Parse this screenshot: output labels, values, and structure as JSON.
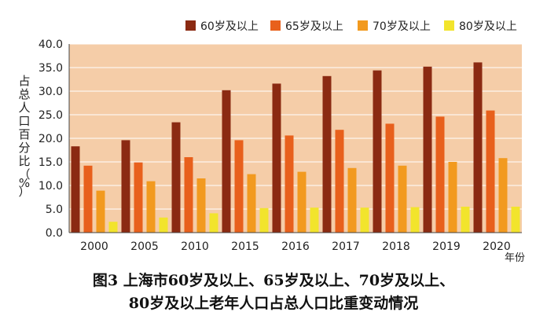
{
  "chart_data": {
    "type": "bar",
    "categories": [
      "2000",
      "2005",
      "2010",
      "2015",
      "2016",
      "2017",
      "2018",
      "2019",
      "2020"
    ],
    "series": [
      {
        "name": "60岁及以上",
        "color": "#8B2A12",
        "values": [
          18.3,
          19.6,
          23.4,
          30.2,
          31.6,
          33.2,
          34.4,
          35.2,
          36.1
        ]
      },
      {
        "name": "65岁及以上",
        "color": "#E8601C",
        "values": [
          14.2,
          14.9,
          16.0,
          19.6,
          20.6,
          21.8,
          23.1,
          24.6,
          25.9
        ]
      },
      {
        "name": "70岁及以上",
        "color": "#F29A1F",
        "values": [
          8.9,
          10.9,
          11.5,
          12.4,
          12.9,
          13.7,
          14.2,
          15.0,
          15.8
        ]
      },
      {
        "name": "80岁及以上",
        "color": "#F2E42C",
        "values": [
          2.3,
          3.2,
          4.1,
          5.2,
          5.3,
          5.3,
          5.4,
          5.5,
          5.5
        ]
      }
    ],
    "ylabel": "占总人口百分比（%）",
    "xlabel": "年份",
    "ylim": [
      0,
      40
    ],
    "yticks": [
      "0.0",
      "5.0",
      "10.0",
      "15.0",
      "20.0",
      "25.0",
      "30.0",
      "35.0",
      "40.0"
    ],
    "grid": true,
    "legend": "top-right",
    "plot_bg": "#F5CDA8"
  },
  "caption": {
    "line1": "图3  上海市60岁及以上、65岁及以上、70岁及以上、",
    "line2": "80岁及以上老年人口占总人口比重变动情况"
  }
}
